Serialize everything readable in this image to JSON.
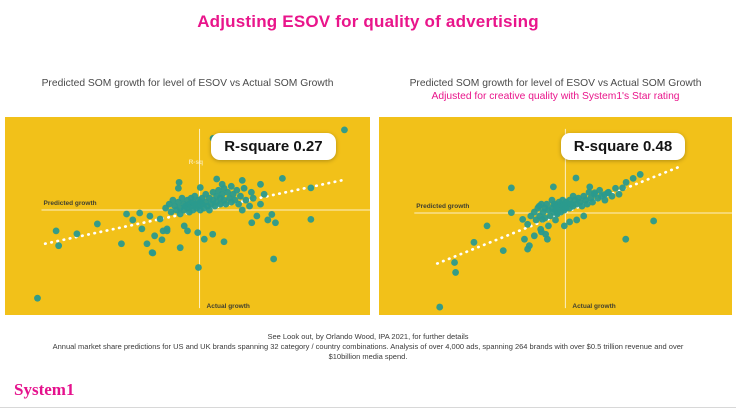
{
  "title": "Adjusting ESOV for quality of advertising",
  "colors": {
    "brand_pink": "#E9158B",
    "panel_yellow": "#F2C119",
    "point_teal": "#2A9A8D",
    "trend_white": "#FFFFFF",
    "subtitle_gray": "#4a4a4a"
  },
  "footer": {
    "line1": "See Look out, by Orlando Wood, IPA 2021, for further details",
    "line2": "Annual market share predictions for US and UK brands spanning 32 category / country combinations.  Analysis of over 4,000 ads, spanning 264 brands with over $0.5 trillion revenue and over",
    "line3": "$10billion media spend."
  },
  "logo": "System1",
  "chart_data": [
    {
      "type": "scatter",
      "title": "Predicted SOM growth for level of ESOV vs Actual SOM Growth",
      "subtitle": "",
      "annotation": "R-square 0.27",
      "occluded_label_fragment": "R-sq",
      "xlabel": "Actual growth",
      "ylabel": "Predicted growth",
      "legend_position": "none",
      "axis_ticks": "none",
      "grid": false,
      "axis_cross_pct": {
        "x": 53.3,
        "y": 47.0
      },
      "trendline_pct": {
        "x1": 11.0,
        "y1": 64.0,
        "x2": 93.5,
        "y2": 31.5
      },
      "points_pct": [
        [
          93.0,
          6.5
        ],
        [
          57.0,
          10.8
        ],
        [
          8.9,
          91.5
        ],
        [
          14.0,
          57.5
        ],
        [
          14.7,
          65.0
        ],
        [
          19.7,
          59.0
        ],
        [
          25.3,
          54.0
        ],
        [
          31.9,
          64.0
        ],
        [
          33.3,
          49.0
        ],
        [
          35.0,
          52.0
        ],
        [
          36.9,
          48.5
        ],
        [
          37.5,
          56.5
        ],
        [
          38.9,
          64.0
        ],
        [
          39.7,
          50.0
        ],
        [
          40.3,
          68.5
        ],
        [
          40.5,
          68.7
        ],
        [
          41.0,
          60.0
        ],
        [
          42.5,
          51.5
        ],
        [
          43.0,
          62.0
        ],
        [
          43.3,
          57.5
        ],
        [
          44.4,
          56.5
        ],
        [
          47.7,
          33.0
        ],
        [
          47.5,
          36.0
        ],
        [
          53.5,
          35.6
        ],
        [
          58.0,
          31.3
        ],
        [
          59.5,
          34.0
        ],
        [
          62.0,
          35.0
        ],
        [
          65.0,
          32.0
        ],
        [
          70.0,
          34.0
        ],
        [
          76.0,
          31.0
        ],
        [
          83.8,
          35.8
        ],
        [
          44.0,
          46.0
        ],
        [
          45.0,
          44.0
        ],
        [
          45.5,
          48.0
        ],
        [
          46.0,
          42.0
        ],
        [
          46.5,
          45.0
        ],
        [
          47.0,
          47.0
        ],
        [
          47.5,
          43.0
        ],
        [
          48.0,
          46.0
        ],
        [
          48.0,
          49.0
        ],
        [
          48.5,
          41.0
        ],
        [
          49.0,
          44.0
        ],
        [
          49.0,
          47.0
        ],
        [
          49.5,
          45.0
        ],
        [
          50.0,
          42.0
        ],
        [
          50.0,
          46.0
        ],
        [
          50.5,
          44.0
        ],
        [
          50.5,
          48.0
        ],
        [
          51.0,
          41.0
        ],
        [
          51.0,
          45.0
        ],
        [
          51.5,
          43.0
        ],
        [
          51.5,
          47.0
        ],
        [
          52.0,
          40.0
        ],
        [
          52.0,
          44.0
        ],
        [
          52.5,
          46.0
        ],
        [
          53.0,
          42.0
        ],
        [
          53.0,
          45.0
        ],
        [
          53.5,
          43.0
        ],
        [
          53.5,
          47.0
        ],
        [
          54.0,
          41.0
        ],
        [
          54.0,
          44.0
        ],
        [
          54.5,
          46.0
        ],
        [
          55.0,
          39.0
        ],
        [
          55.0,
          43.0
        ],
        [
          55.5,
          45.0
        ],
        [
          56.0,
          41.0
        ],
        [
          56.0,
          47.0
        ],
        [
          56.5,
          44.0
        ],
        [
          57.0,
          38.0
        ],
        [
          57.0,
          42.0
        ],
        [
          57.5,
          45.0
        ],
        [
          58.0,
          40.0
        ],
        [
          58.0,
          43.0
        ],
        [
          58.5,
          37.0
        ],
        [
          59.0,
          41.0
        ],
        [
          59.0,
          44.0
        ],
        [
          59.5,
          39.0
        ],
        [
          60.0,
          36.0
        ],
        [
          60.0,
          42.0
        ],
        [
          60.5,
          44.0
        ],
        [
          61.0,
          38.0
        ],
        [
          61.5,
          41.0
        ],
        [
          62.0,
          43.0
        ],
        [
          62.5,
          39.0
        ],
        [
          63.0,
          42.0
        ],
        [
          63.5,
          37.0
        ],
        [
          64.0,
          44.0
        ],
        [
          64.5,
          40.0
        ],
        [
          65.0,
          47.0
        ],
        [
          65.5,
          36.0
        ],
        [
          66.0,
          42.0
        ],
        [
          67.0,
          45.0
        ],
        [
          67.5,
          38.0
        ],
        [
          68.0,
          41.0
        ],
        [
          69.0,
          50.0
        ],
        [
          70.0,
          44.0
        ],
        [
          71.0,
          39.0
        ],
        [
          72.0,
          52.0
        ],
        [
          73.1,
          49.2
        ],
        [
          44.4,
          57.5
        ],
        [
          48.0,
          66.0
        ],
        [
          49.1,
          55.0
        ],
        [
          50.0,
          57.5
        ],
        [
          52.8,
          58.4
        ],
        [
          53.0,
          76.0
        ],
        [
          54.6,
          61.7
        ],
        [
          56.9,
          59.2
        ],
        [
          60.0,
          63.0
        ],
        [
          67.6,
          53.4
        ],
        [
          73.6,
          71.7
        ],
        [
          74.1,
          53.4
        ],
        [
          83.8,
          51.7
        ]
      ]
    },
    {
      "type": "scatter",
      "title": "Predicted SOM growth for level of ESOV vs Actual SOM Growth",
      "subtitle": "Adjusted for creative quality with System1's Star rating",
      "annotation": "R-square 0.48",
      "occluded_label_fragment": "",
      "xlabel": "Actual growth",
      "ylabel": "Predicted growth",
      "legend_position": "none",
      "axis_ticks": "none",
      "grid": false,
      "axis_cross_pct": {
        "x": 52.8,
        "y": 48.5
      },
      "trendline_pct": {
        "x1": 16.5,
        "y1": 74.0,
        "x2": 86.0,
        "y2": 24.5
      },
      "points_pct": [
        [
          85.2,
          17.5
        ],
        [
          17.2,
          96.0
        ],
        [
          21.4,
          73.5
        ],
        [
          21.7,
          78.5
        ],
        [
          26.9,
          63.3
        ],
        [
          30.6,
          55.0
        ],
        [
          35.2,
          67.5
        ],
        [
          37.5,
          35.8
        ],
        [
          49.4,
          35.3
        ],
        [
          55.8,
          30.8
        ],
        [
          59.7,
          35.3
        ],
        [
          61.1,
          38.3
        ],
        [
          63.9,
          39.2
        ],
        [
          64.8,
          38.3
        ],
        [
          69.0,
          35.8
        ],
        [
          37.5,
          48.3
        ],
        [
          40.7,
          51.7
        ],
        [
          41.2,
          61.7
        ],
        [
          42.1,
          54.2
        ],
        [
          42.1,
          66.7
        ],
        [
          42.6,
          65.0
        ],
        [
          45.4,
          45.0
        ],
        [
          45.8,
          56.7
        ],
        [
          46.3,
          51.7
        ],
        [
          47.2,
          59.2
        ],
        [
          47.7,
          61.7
        ],
        [
          49.5,
          44.2
        ],
        [
          50.5,
          48.3
        ],
        [
          43.0,
          50.0
        ],
        [
          44.0,
          48.0
        ],
        [
          44.5,
          52.0
        ],
        [
          45.0,
          46.0
        ],
        [
          45.5,
          50.0
        ],
        [
          46.0,
          44.0
        ],
        [
          46.5,
          48.0
        ],
        [
          47.0,
          46.0
        ],
        [
          47.0,
          51.0
        ],
        [
          47.5,
          44.0
        ],
        [
          48.0,
          47.0
        ],
        [
          48.5,
          50.0
        ],
        [
          49.0,
          42.0
        ],
        [
          49.0,
          46.0
        ],
        [
          49.5,
          48.0
        ],
        [
          50.0,
          44.0
        ],
        [
          50.0,
          47.0
        ],
        [
          50.5,
          45.0
        ],
        [
          50.5,
          49.0
        ],
        [
          51.0,
          43.0
        ],
        [
          51.0,
          46.0
        ],
        [
          51.5,
          44.0
        ],
        [
          51.5,
          48.0
        ],
        [
          52.0,
          42.0
        ],
        [
          52.0,
          45.0
        ],
        [
          52.5,
          47.0
        ],
        [
          53.0,
          43.0
        ],
        [
          53.0,
          46.0
        ],
        [
          53.5,
          44.0
        ],
        [
          54.0,
          42.0
        ],
        [
          54.0,
          46.0
        ],
        [
          54.5,
          44.0
        ],
        [
          55.0,
          40.0
        ],
        [
          55.0,
          45.0
        ],
        [
          55.5,
          42.0
        ],
        [
          56.0,
          44.0
        ],
        [
          56.5,
          41.0
        ],
        [
          57.0,
          43.0
        ],
        [
          57.5,
          45.0
        ],
        [
          58.0,
          40.0
        ],
        [
          58.5,
          42.0
        ],
        [
          59.0,
          44.0
        ],
        [
          59.5,
          38.0
        ],
        [
          60.0,
          41.0
        ],
        [
          60.5,
          43.0
        ],
        [
          61.0,
          39.0
        ],
        [
          62.0,
          41.0
        ],
        [
          62.5,
          37.0
        ],
        [
          63.0,
          40.0
        ],
        [
          64.0,
          42.0
        ],
        [
          65.0,
          38.0
        ],
        [
          66.0,
          40.0
        ],
        [
          67.0,
          36.0
        ],
        [
          68.0,
          39.0
        ],
        [
          70.0,
          33.0
        ],
        [
          72.0,
          31.0
        ],
        [
          74.0,
          29.0
        ],
        [
          44.0,
          60.0
        ],
        [
          46.0,
          58.0
        ],
        [
          48.0,
          55.0
        ],
        [
          50.0,
          52.0
        ],
        [
          52.5,
          55.0
        ],
        [
          54.0,
          53.0
        ],
        [
          56.0,
          52.0
        ],
        [
          58.0,
          50.0
        ],
        [
          69.9,
          61.7
        ],
        [
          77.8,
          52.5
        ]
      ]
    }
  ]
}
